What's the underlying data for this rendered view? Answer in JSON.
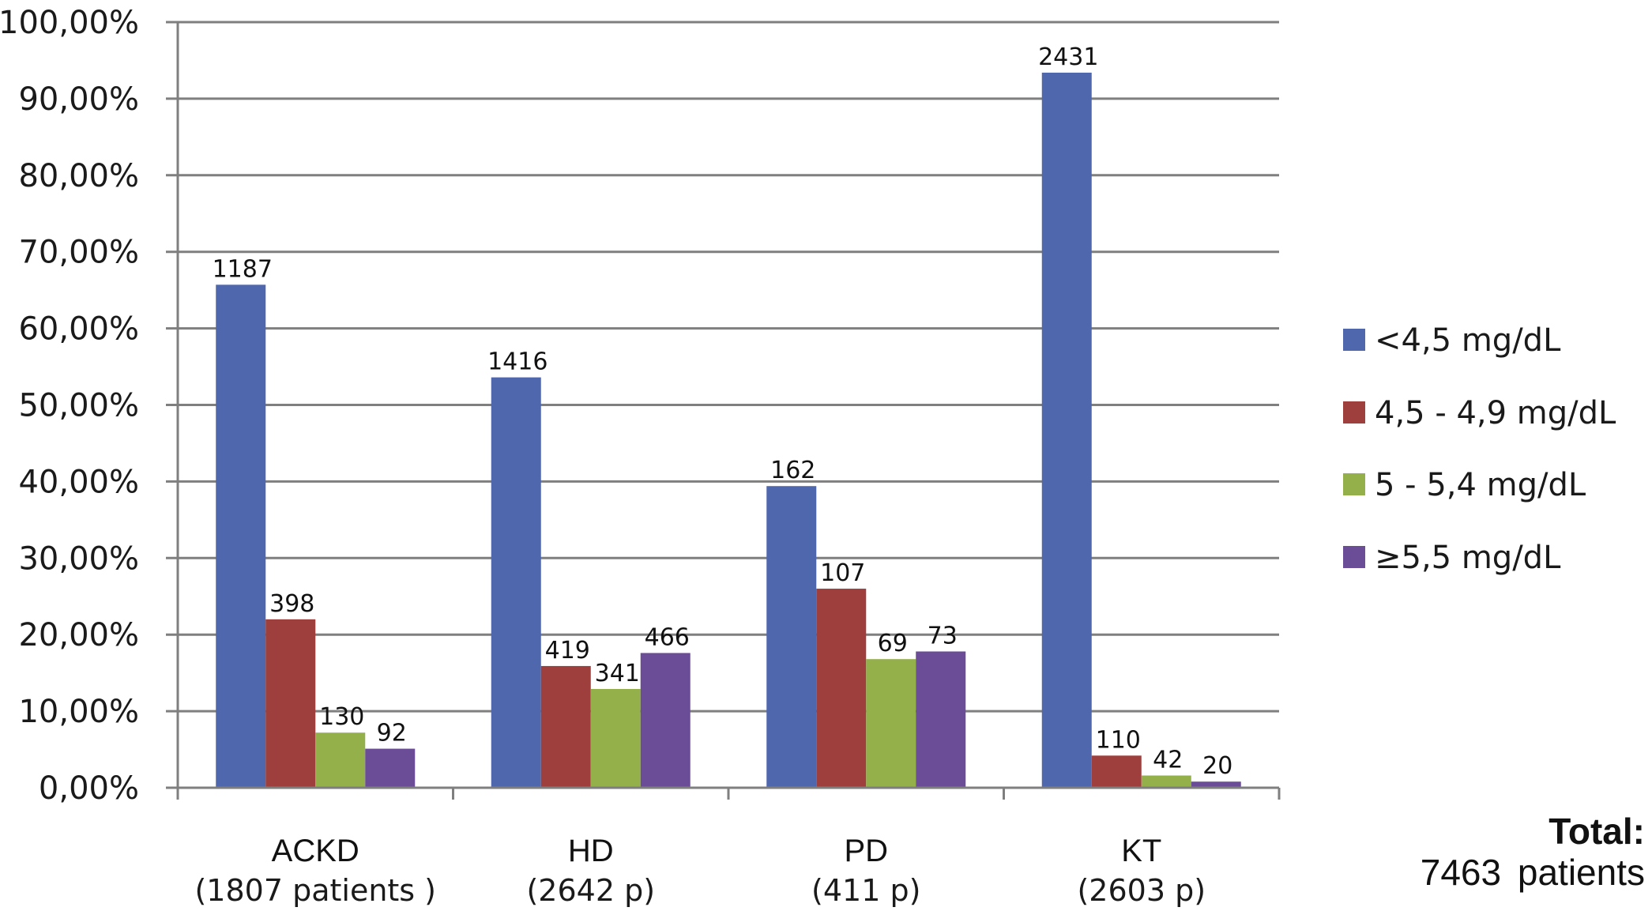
{
  "chart_data": {
    "type": "bar",
    "title": "",
    "xlabel": "",
    "ylabel": "",
    "ylim": [
      0,
      100
    ],
    "y_tick_labels": [
      "0,00%",
      "10,00%",
      "20,00%",
      "30,00%",
      "40,00%",
      "50,00%",
      "60,00%",
      "70,00%",
      "80,00%",
      "90,00%",
      "100,00%"
    ],
    "grid": true,
    "legend_position": "right",
    "categories": [
      "ACKD",
      "HD",
      "PD",
      "KT"
    ],
    "category_sublabels": [
      "(1807 patients   )",
      "(2642 p)",
      "(411 p)",
      "(2603 p)"
    ],
    "category_totals": [
      1807,
      2642,
      411,
      2603
    ],
    "series": [
      {
        "name": "<4,5 mg/dL",
        "color": "#4E67AD",
        "counts": [
          1187,
          1416,
          162,
          2431
        ],
        "values": [
          65.7,
          53.6,
          39.4,
          93.4
        ]
      },
      {
        "name": "4,5 - 4,9 mg/dL",
        "color": "#9E3F3D",
        "counts": [
          398,
          419,
          107,
          110
        ],
        "values": [
          22.0,
          15.9,
          26.0,
          4.2
        ]
      },
      {
        "name": "5 - 5,4 mg/dL",
        "color": "#94B04A",
        "counts": [
          130,
          341,
          69,
          42
        ],
        "values": [
          7.2,
          12.9,
          16.8,
          1.6
        ]
      },
      {
        "name": "≥5,5 mg/dL",
        "color": "#6A4D96",
        "counts": [
          92,
          466,
          73,
          20
        ],
        "values": [
          5.1,
          17.6,
          17.8,
          0.8
        ]
      }
    ],
    "annotation": {
      "title": "Total:",
      "value": "7463",
      "unit": "patients"
    }
  }
}
